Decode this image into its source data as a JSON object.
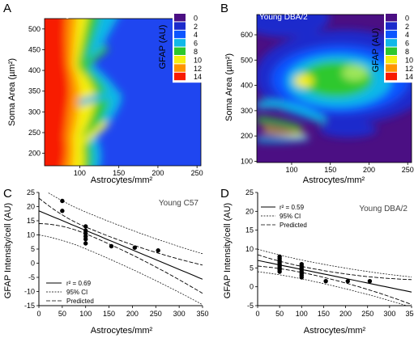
{
  "chart_data": [
    {
      "panel": "A",
      "type": "heatmap",
      "title": "Young C57",
      "xlabel": "Astrocytes/mm²",
      "ylabel": "Soma Area (µm²)",
      "x_ticks": [
        100,
        150,
        200,
        250
      ],
      "y_ticks": [
        200,
        250,
        300,
        350,
        400,
        450,
        500
      ],
      "xlim": [
        55,
        255
      ],
      "ylim": [
        170,
        525
      ],
      "colorbar": {
        "title": "GFAP (AU)",
        "levels": [
          0,
          2,
          4,
          6,
          8,
          10,
          12,
          14
        ],
        "colors": [
          "#4b0f83",
          "#1c2bcc",
          "#0c55ff",
          "#11b8e8",
          "#2dc82d",
          "#f6ee10",
          "#ff9400",
          "#f81a00"
        ]
      }
    },
    {
      "panel": "B",
      "type": "heatmap",
      "title": "Young DBA/2",
      "xlabel": "Astrocytes/mm²",
      "ylabel": "Soma Area (µm²)",
      "x_ticks": [
        100,
        150,
        200,
        250
      ],
      "y_ticks": [
        100,
        200,
        300,
        400,
        500,
        600
      ],
      "xlim": [
        55,
        255
      ],
      "ylim": [
        95,
        680
      ],
      "colorbar": {
        "title": "GFAP (AU)",
        "levels": [
          0,
          2,
          4,
          6,
          8,
          10,
          12,
          14
        ],
        "colors": [
          "#4b0f83",
          "#1c2bcc",
          "#0c55ff",
          "#11b8e8",
          "#2dc82d",
          "#f6ee10",
          "#ff9400",
          "#f81a00"
        ]
      }
    },
    {
      "panel": "C",
      "type": "scatter",
      "title": "Young C57",
      "xlabel": "Astrocytes/mm²",
      "ylabel": "GFAP Intensity/cell (AU)",
      "xlim": [
        0,
        350
      ],
      "ylim": [
        -15,
        25
      ],
      "x_ticks": [
        0,
        50,
        100,
        150,
        200,
        250,
        300,
        350
      ],
      "y_ticks": [
        -15,
        -10,
        -5,
        0,
        5,
        10,
        15,
        20,
        25
      ],
      "points": [
        [
          50,
          22
        ],
        [
          50,
          18.5
        ],
        [
          100,
          13
        ],
        [
          100,
          11.5
        ],
        [
          100,
          10.5
        ],
        [
          100,
          9.5
        ],
        [
          100,
          8.5
        ],
        [
          100,
          7
        ],
        [
          155,
          6
        ],
        [
          205,
          5.5
        ],
        [
          255,
          4.5
        ]
      ],
      "fit": {
        "intercept": 18.5,
        "slope": -0.069
      },
      "ci_halfwidth": [
        4.5,
        1.2,
        5
      ],
      "pi_halfwidth": [
        8.5,
        6.5,
        9
      ],
      "legend": {
        "r2": "r² = 0.69",
        "ci": "95% CI",
        "predicted": "Predicted"
      }
    },
    {
      "panel": "D",
      "type": "scatter",
      "title": "Young DBA/2",
      "xlabel": "Astrocytes/mm²",
      "ylabel": "GFAP Intensity/cell (AU)",
      "xlim": [
        0,
        350
      ],
      "ylim": [
        -5,
        25
      ],
      "x_ticks": [
        0,
        50,
        100,
        150,
        200,
        250,
        300,
        350
      ],
      "y_ticks": [
        -5,
        0,
        5,
        10,
        15,
        20,
        25
      ],
      "points": [
        [
          50,
          8
        ],
        [
          50,
          7.5
        ],
        [
          50,
          7
        ],
        [
          50,
          6.5
        ],
        [
          50,
          6
        ],
        [
          50,
          5.5
        ],
        [
          50,
          5
        ],
        [
          50,
          4.5
        ],
        [
          50,
          4
        ],
        [
          100,
          6
        ],
        [
          100,
          5.5
        ],
        [
          100,
          5
        ],
        [
          100,
          4.5
        ],
        [
          100,
          4
        ],
        [
          100,
          3.5
        ],
        [
          100,
          3
        ],
        [
          100,
          2.5
        ],
        [
          155,
          1.5
        ],
        [
          205,
          1.5
        ],
        [
          255,
          1.5
        ]
      ],
      "fit": {
        "intercept": 7,
        "slope": -0.024
      },
      "ci_halfwidth": [
        1.5,
        0.8,
        3.3
      ],
      "pi_halfwidth": [
        3,
        2.5,
        4
      ],
      "legend": {
        "r2": "r² = 0.59",
        "ci": "95% CI",
        "predicted": "Predicted"
      }
    }
  ]
}
